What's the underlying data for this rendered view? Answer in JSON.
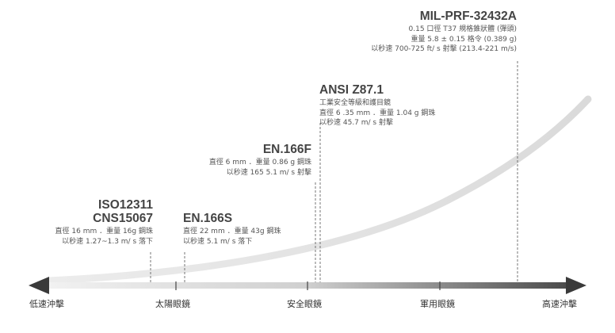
{
  "standards": {
    "iso": {
      "title_line1": "ISO12311",
      "title_line2": "CNS15067",
      "desc_line1": "直徑 16 mm ．重量 16g 鋼珠",
      "desc_line2": "以秒速 1.27~1.3 m/ s 落下"
    },
    "en166s": {
      "title": "EN.166S",
      "desc_line1": "直徑 22 mm ．重量 43g 鋼珠",
      "desc_line2": "以秒速 5.1 m/ s 落下"
    },
    "en166f": {
      "title": "EN.166F",
      "desc_line1": "直徑 6 mm ．重量 0.86 g 鋼珠",
      "desc_line2": "以秒速 165 5.1 m/ s 射擊"
    },
    "ansi": {
      "title": "ANSI Z87.1",
      "desc_line1": "工業安全等級和護目鏡",
      "desc_line2": "直徑 6 .35 mm ．重量 1.04 g 鋼珠",
      "desc_line3": "以秒速 45.7 m/ s 射擊"
    },
    "mil": {
      "title": "MIL-PRF-32432A",
      "desc_line1": "0.15 口徑 T37 規格錐狀體 (彈頭)",
      "desc_line2": "重量 5.8 ± 0.15 格令 (0.389 g)",
      "desc_line3": "以秒速 700-725 ft/ s 射擊 (213.4-221 m/s)"
    }
  },
  "axis": {
    "low_label": "低速沖擊",
    "sun_label": "太陽眼鏡",
    "safety_label": "安全眼鏡",
    "military_label": "軍用眼鏡",
    "high_label": "高速沖擊"
  },
  "colors": {
    "arrow_dark": "#3c3c3c",
    "arrow_light": "#f0f0f0",
    "curve": "#dcdcdc",
    "text": "#444444"
  }
}
